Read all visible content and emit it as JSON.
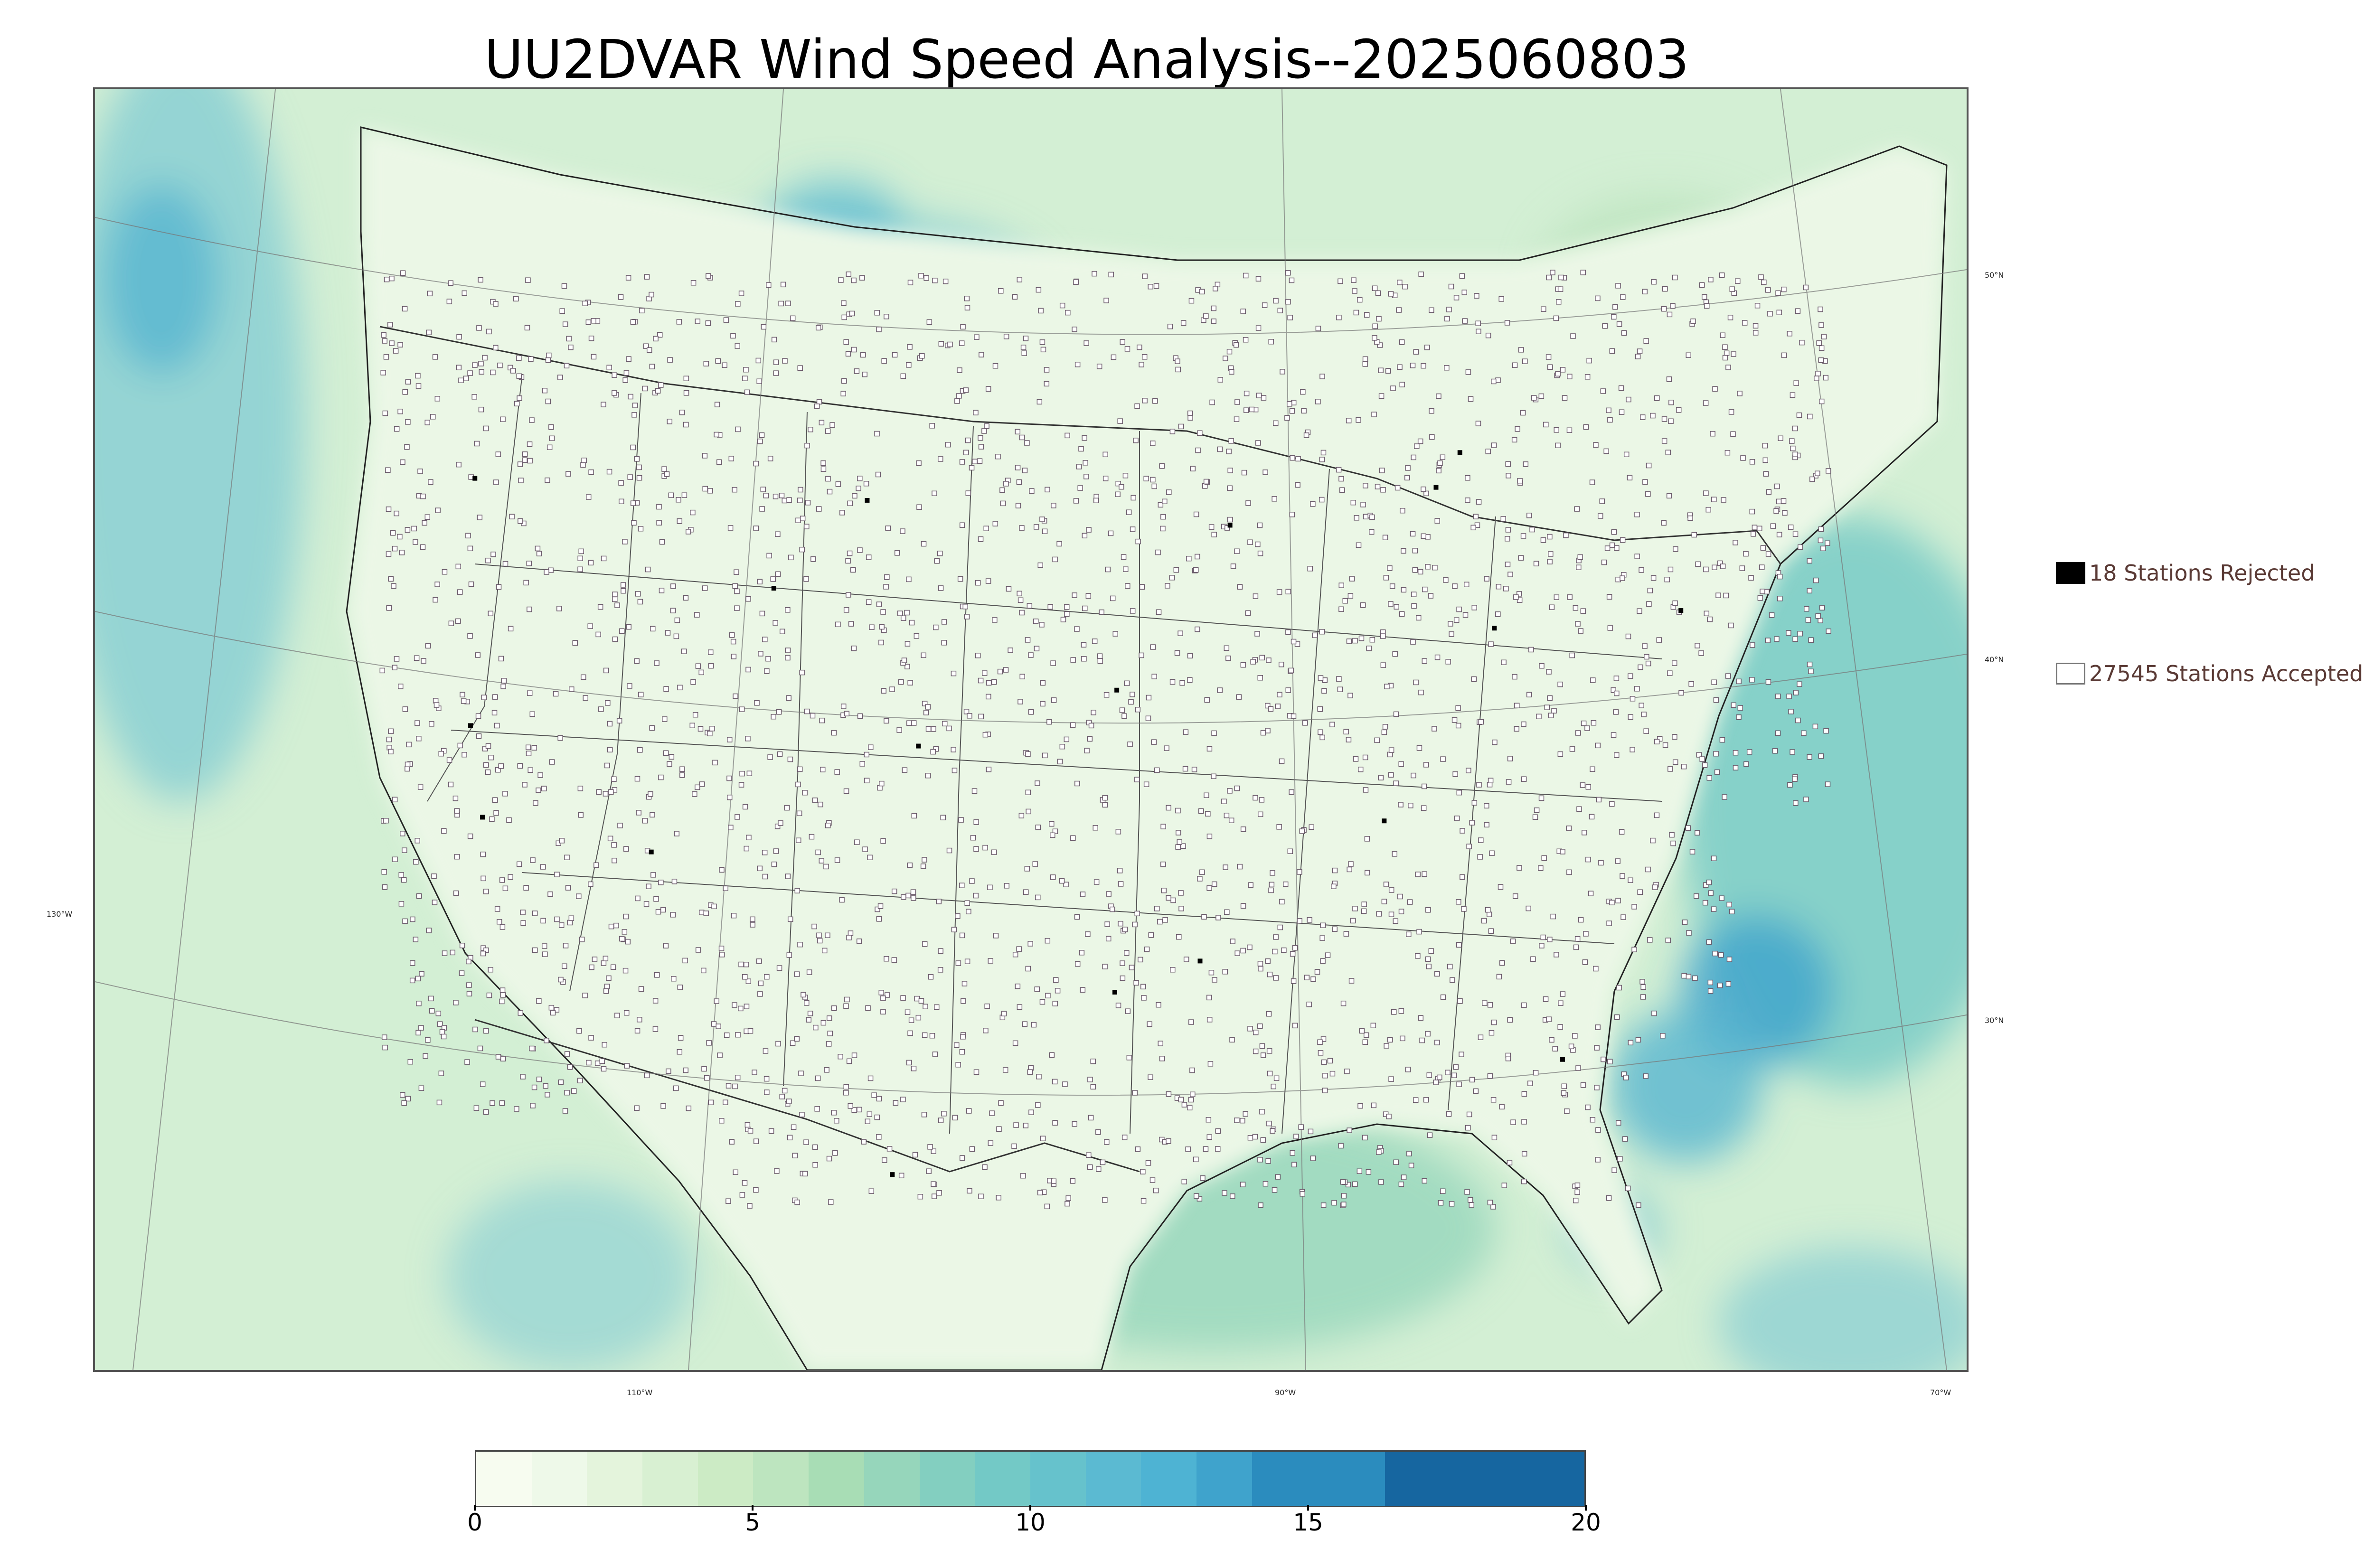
{
  "title": "UU2DVAR Wind Speed Analysis--2025060803",
  "colors": {
    "land_base": "#e8f6e2",
    "ocean_base": "#c9ead0",
    "light_blue": "#86cdd3",
    "mid_blue": "#57b5cf",
    "dark_blue": "#2b7db8",
    "station_accepted_fill": "#ffffff",
    "station_accepted_stroke": "#6a5a6a",
    "station_rejected": "#000000",
    "legend_text": "#5a3a35"
  },
  "legend": {
    "rejected": {
      "count": "18",
      "label": "18 Stations Rejected",
      "icon": "filled-square-icon"
    },
    "accepted": {
      "count": "27545",
      "label": "27545 Stations Accepted",
      "icon": "open-square-icon"
    }
  },
  "graticule": {
    "latitudes": [
      "50°N",
      "40°N",
      "30°N"
    ],
    "longitudes": [
      "130°W",
      "110°W",
      "90°W",
      "70°W"
    ]
  },
  "colorbar": {
    "min": 0,
    "max": 20,
    "ticks": [
      {
        "value": 0,
        "label": "0"
      },
      {
        "value": 5,
        "label": "5"
      },
      {
        "value": 10,
        "label": "10"
      },
      {
        "value": 15,
        "label": "15"
      },
      {
        "value": 20,
        "label": "20"
      }
    ],
    "bins": [
      {
        "from": 0,
        "to": 1,
        "color": "#f7fcf0"
      },
      {
        "from": 1,
        "to": 2,
        "color": "#eef9e9"
      },
      {
        "from": 2,
        "to": 3,
        "color": "#e4f4dc"
      },
      {
        "from": 3,
        "to": 4,
        "color": "#d8f0d2"
      },
      {
        "from": 4,
        "to": 5,
        "color": "#ccebc5"
      },
      {
        "from": 5,
        "to": 6,
        "color": "#bde5bf"
      },
      {
        "from": 6,
        "to": 7,
        "color": "#a8ddb5"
      },
      {
        "from": 7,
        "to": 8,
        "color": "#96d6bb"
      },
      {
        "from": 8,
        "to": 9,
        "color": "#83cfc0"
      },
      {
        "from": 9,
        "to": 10,
        "color": "#73c9c6"
      },
      {
        "from": 10,
        "to": 11,
        "color": "#66c2cc"
      },
      {
        "from": 11,
        "to": 12,
        "color": "#5bbad2"
      },
      {
        "from": 12,
        "to": 13,
        "color": "#4eb3d3"
      },
      {
        "from": 13,
        "to": 14,
        "color": "#3fa3cc"
      },
      {
        "from": 14,
        "to": 16.4,
        "color": "#2b8cbe"
      },
      {
        "from": 16.4,
        "to": 20,
        "color": "#1666a0"
      }
    ]
  }
}
